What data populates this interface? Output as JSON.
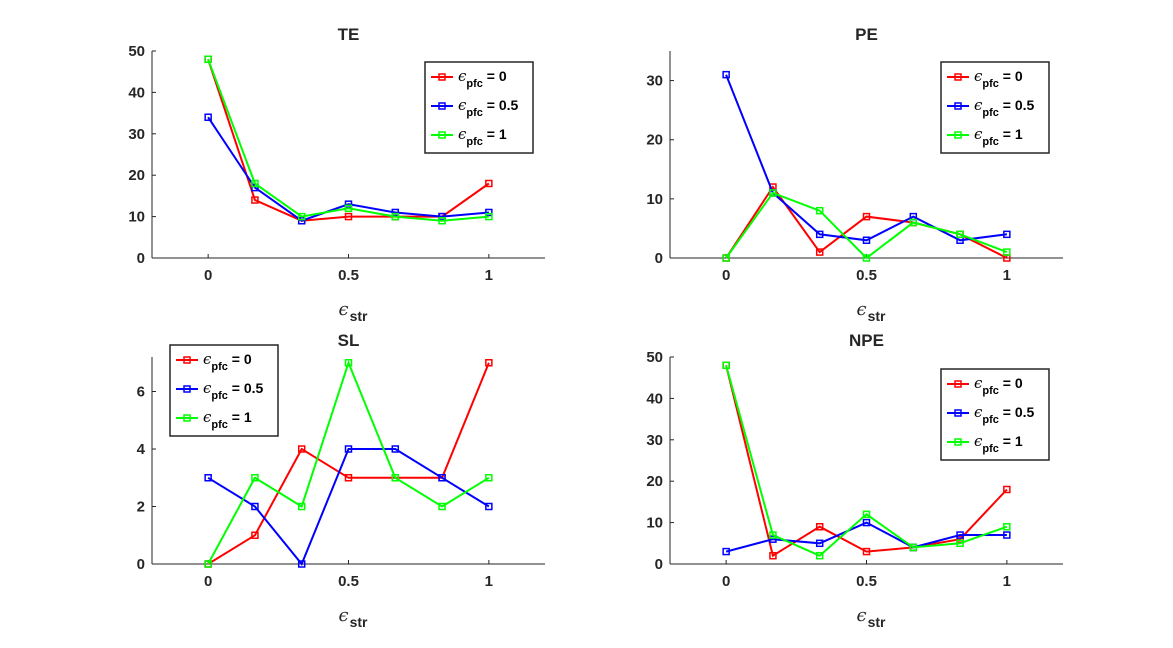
{
  "chart_data": [
    {
      "type": "line",
      "title": "TE",
      "xlabel": "ϵ",
      "xlabel_sub": "str",
      "xlim": [
        -0.2,
        1.2
      ],
      "ylim": [
        0,
        50
      ],
      "xticks": [
        0,
        0.5,
        1
      ],
      "xtick_labels": [
        "0",
        "0.5",
        "1"
      ],
      "yticks": [
        0,
        10,
        20,
        30,
        40,
        50
      ],
      "ytick_labels": [
        "0",
        "10",
        "20",
        "30",
        "40",
        "50"
      ],
      "legend": "top-right",
      "x": [
        0,
        0.1667,
        0.3333,
        0.5,
        0.6667,
        0.8333,
        1
      ],
      "series": [
        {
          "name": "ϵpfc = 0",
          "symbol": "ϵ",
          "sub": "pfc",
          "suffix": " = 0",
          "color": "#ff0000",
          "values": [
            48,
            14,
            9,
            10,
            10,
            10,
            18
          ]
        },
        {
          "name": "ϵpfc = 0.5",
          "symbol": "ϵ",
          "sub": "pfc",
          "suffix": " = 0.5",
          "color": "#0000ff",
          "values": [
            34,
            17,
            9,
            13,
            11,
            10,
            11
          ]
        },
        {
          "name": "ϵpfc = 1",
          "symbol": "ϵ",
          "sub": "pfc",
          "suffix": " = 1",
          "color": "#00ff00",
          "values": [
            48,
            18,
            10,
            12,
            10,
            9,
            10
          ]
        }
      ]
    },
    {
      "type": "line",
      "title": "PE",
      "xlabel": "ϵ",
      "xlabel_sub": "str",
      "xlim": [
        -0.2,
        1.2
      ],
      "ylim": [
        0,
        35
      ],
      "xticks": [
        0,
        0.5,
        1
      ],
      "xtick_labels": [
        "0",
        "0.5",
        "1"
      ],
      "yticks": [
        0,
        10,
        20,
        30
      ],
      "ytick_labels": [
        "0",
        "10",
        "20",
        "30"
      ],
      "legend": "top-right",
      "x": [
        0,
        0.1667,
        0.3333,
        0.5,
        0.6667,
        0.8333,
        1
      ],
      "series": [
        {
          "name": "ϵpfc = 0",
          "symbol": "ϵ",
          "sub": "pfc",
          "suffix": " = 0",
          "color": "#ff0000",
          "values": [
            0,
            12,
            1,
            7,
            6,
            4,
            0
          ]
        },
        {
          "name": "ϵpfc = 0.5",
          "symbol": "ϵ",
          "sub": "pfc",
          "suffix": " = 0.5",
          "color": "#0000ff",
          "values": [
            31,
            11,
            4,
            3,
            7,
            3,
            4
          ]
        },
        {
          "name": "ϵpfc = 1",
          "symbol": "ϵ",
          "sub": "pfc",
          "suffix": " = 1",
          "color": "#00ff00",
          "values": [
            0,
            11,
            8,
            0,
            6,
            4,
            1
          ]
        }
      ]
    },
    {
      "type": "line",
      "title": "SL",
      "xlabel": "ϵ",
      "xlabel_sub": "str",
      "xlim": [
        -0.2,
        1.2
      ],
      "ylim": [
        0,
        7.2
      ],
      "xticks": [
        0,
        0.5,
        1
      ],
      "xtick_labels": [
        "0",
        "0.5",
        "1"
      ],
      "yticks": [
        0,
        2,
        4,
        6
      ],
      "ytick_labels": [
        "0",
        "2",
        "4",
        "6"
      ],
      "legend": "top-left",
      "x": [
        0,
        0.1667,
        0.3333,
        0.5,
        0.6667,
        0.8333,
        1
      ],
      "series": [
        {
          "name": "ϵpfc = 0",
          "symbol": "ϵ",
          "sub": "pfc",
          "suffix": " = 0",
          "color": "#ff0000",
          "values": [
            0,
            1,
            4,
            3,
            3,
            3,
            7
          ]
        },
        {
          "name": "ϵpfc = 0.5",
          "symbol": "ϵ",
          "sub": "pfc",
          "suffix": " = 0.5",
          "color": "#0000ff",
          "values": [
            3,
            2,
            0,
            4,
            4,
            3,
            2
          ]
        },
        {
          "name": "ϵpfc = 1",
          "symbol": "ϵ",
          "sub": "pfc",
          "suffix": " = 1",
          "color": "#00ff00",
          "values": [
            0,
            3,
            2,
            7,
            3,
            2,
            3
          ]
        }
      ]
    },
    {
      "type": "line",
      "title": "NPE",
      "xlabel": "ϵ",
      "xlabel_sub": "str",
      "xlim": [
        -0.2,
        1.2
      ],
      "ylim": [
        0,
        50
      ],
      "xticks": [
        0,
        0.5,
        1
      ],
      "xtick_labels": [
        "0",
        "0.5",
        "1"
      ],
      "yticks": [
        0,
        10,
        20,
        30,
        40,
        50
      ],
      "ytick_labels": [
        "0",
        "10",
        "20",
        "30",
        "40",
        "50"
      ],
      "legend": "top-right",
      "x": [
        0,
        0.1667,
        0.3333,
        0.5,
        0.6667,
        0.8333,
        1
      ],
      "series": [
        {
          "name": "ϵpfc = 0",
          "symbol": "ϵ",
          "sub": "pfc",
          "suffix": " = 0",
          "color": "#ff0000",
          "values": [
            48,
            2,
            9,
            3,
            4,
            6,
            18
          ]
        },
        {
          "name": "ϵpfc = 0.5",
          "symbol": "ϵ",
          "sub": "pfc",
          "suffix": " = 0.5",
          "color": "#0000ff",
          "values": [
            3,
            6,
            5,
            10,
            4,
            7,
            7
          ]
        },
        {
          "name": "ϵpfc = 1",
          "symbol": "ϵ",
          "sub": "pfc",
          "suffix": " = 1",
          "color": "#00ff00",
          "values": [
            48,
            7,
            2,
            12,
            4,
            5,
            9
          ]
        }
      ]
    }
  ]
}
